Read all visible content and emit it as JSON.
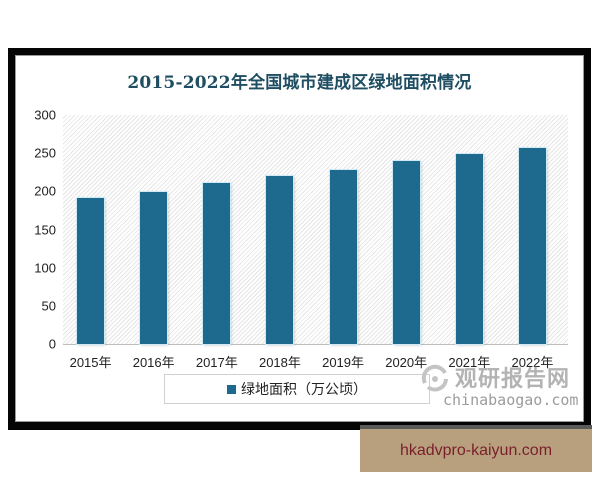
{
  "chart": {
    "title": "2015-2022年全国城市建成区绿地面积情况",
    "legend_label": "绿地面积（万公顷）",
    "bar_color": "#1d6a8e",
    "title_color": "#1f4e63"
  },
  "watermark": {
    "name_cn": "观研报告网",
    "domain": "chinabaogao.com"
  },
  "banner": {
    "text": "hkadvpro-kaiyun.com",
    "bg_color": "#b8a07f",
    "text_color": "#7a1f2a"
  },
  "chart_data": {
    "type": "bar",
    "title": "2015-2022年全国城市建成区绿地面积情况",
    "xlabel": "",
    "ylabel": "",
    "categories": [
      "2015年",
      "2016年",
      "2017年",
      "2018年",
      "2019年",
      "2020年",
      "2021年",
      "2022年"
    ],
    "series": [
      {
        "name": "绿地面积（万公顷）",
        "values": [
          190.8,
          199.3,
          210.5,
          219.7,
          228.5,
          239.8,
          249.3,
          256.3
        ]
      }
    ],
    "ylim": [
      0,
      300
    ],
    "yticks": [
      0,
      50,
      100,
      150,
      200,
      250,
      300
    ],
    "grid": false,
    "legend_position": "bottom"
  }
}
